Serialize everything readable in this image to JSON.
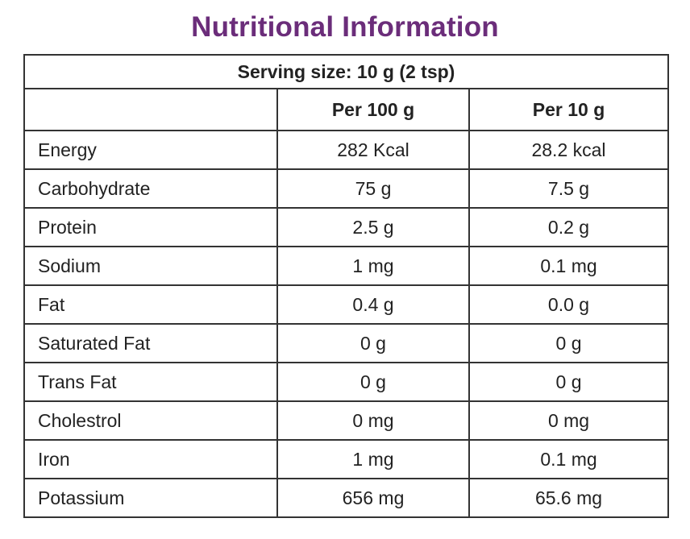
{
  "title": "Nutritional Information",
  "serving": "Serving size: 10 g (2 tsp)",
  "columns": [
    "",
    "Per 100 g",
    "Per 10 g"
  ],
  "rows": [
    {
      "nutrient": "Energy",
      "per100": "282 Kcal",
      "per10": "28.2 kcal"
    },
    {
      "nutrient": "Carbohydrate",
      "per100": "75 g",
      "per10": "7.5 g"
    },
    {
      "nutrient": "Protein",
      "per100": "2.5 g",
      "per10": "0.2 g"
    },
    {
      "nutrient": "Sodium",
      "per100": "1 mg",
      "per10": "0.1 mg"
    },
    {
      "nutrient": "Fat",
      "per100": "0.4 g",
      "per10": "0.0 g"
    },
    {
      "nutrient": "Saturated Fat",
      "per100": "0 g",
      "per10": "0 g"
    },
    {
      "nutrient": "Trans Fat",
      "per100": "0 g",
      "per10": "0 g"
    },
    {
      "nutrient": "Cholestrol",
      "per100": "0 mg",
      "per10": "0 mg"
    },
    {
      "nutrient": "Iron",
      "per100": "1 mg",
      "per10": "0.1 mg"
    },
    {
      "nutrient": "Potassium",
      "per100": "656 mg",
      "per10": "65.6 mg"
    }
  ],
  "colors": {
    "title": "#6b2d7a",
    "border": "#333333",
    "text": "#222222"
  }
}
